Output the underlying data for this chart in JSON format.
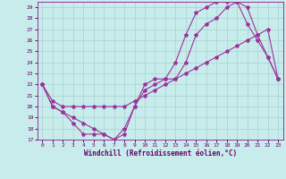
{
  "xlabel": "Windchill (Refroidissement éolien,°C)",
  "background_color": "#c8ecec",
  "grid_color": "#b0d8d8",
  "line_color": "#993399",
  "marker_color": "#993399",
  "xlim": [
    -0.5,
    23.5
  ],
  "ylim": [
    17,
    29.5
  ],
  "xticks": [
    0,
    1,
    2,
    3,
    4,
    5,
    6,
    7,
    8,
    9,
    10,
    11,
    12,
    13,
    14,
    15,
    16,
    17,
    18,
    19,
    20,
    21,
    22,
    23
  ],
  "yticks": [
    17,
    18,
    19,
    20,
    21,
    22,
    23,
    24,
    25,
    26,
    27,
    28,
    29
  ],
  "line1_x": [
    0,
    1,
    2,
    3,
    4,
    5,
    6,
    7,
    8,
    9,
    10,
    11,
    12,
    13,
    14,
    15,
    16,
    17,
    18,
    19,
    20,
    21,
    22,
    23
  ],
  "line1_y": [
    22,
    20,
    19.5,
    18.5,
    17.5,
    17.5,
    17.5,
    17,
    18.0,
    20.0,
    21.5,
    22.0,
    22.5,
    24.0,
    26.5,
    28.5,
    29.0,
    29.5,
    29.5,
    29.5,
    27.5,
    26.0,
    24.5,
    22.5
  ],
  "line2_x": [
    0,
    1,
    2,
    3,
    4,
    5,
    6,
    7,
    8,
    9,
    10,
    11,
    12,
    13,
    14,
    15,
    16,
    17,
    18,
    19,
    20,
    21,
    22,
    23
  ],
  "line2_y": [
    22,
    20,
    19.5,
    19.0,
    18.5,
    18.0,
    17.5,
    17.0,
    17.5,
    20.0,
    22.0,
    22.5,
    22.5,
    22.5,
    24.0,
    26.5,
    27.5,
    28.0,
    29.0,
    29.5,
    29.0,
    26.5,
    24.5,
    22.5
  ],
  "line3_x": [
    0,
    1,
    2,
    3,
    4,
    5,
    6,
    7,
    8,
    9,
    10,
    11,
    12,
    13,
    14,
    15,
    16,
    17,
    18,
    19,
    20,
    21,
    22,
    23
  ],
  "line3_y": [
    22,
    20.5,
    20.0,
    20.0,
    20.0,
    20.0,
    20.0,
    20.0,
    20.0,
    20.5,
    21.0,
    21.5,
    22.0,
    22.5,
    23.0,
    23.5,
    24.0,
    24.5,
    25.0,
    25.5,
    26.0,
    26.5,
    27.0,
    22.5
  ]
}
